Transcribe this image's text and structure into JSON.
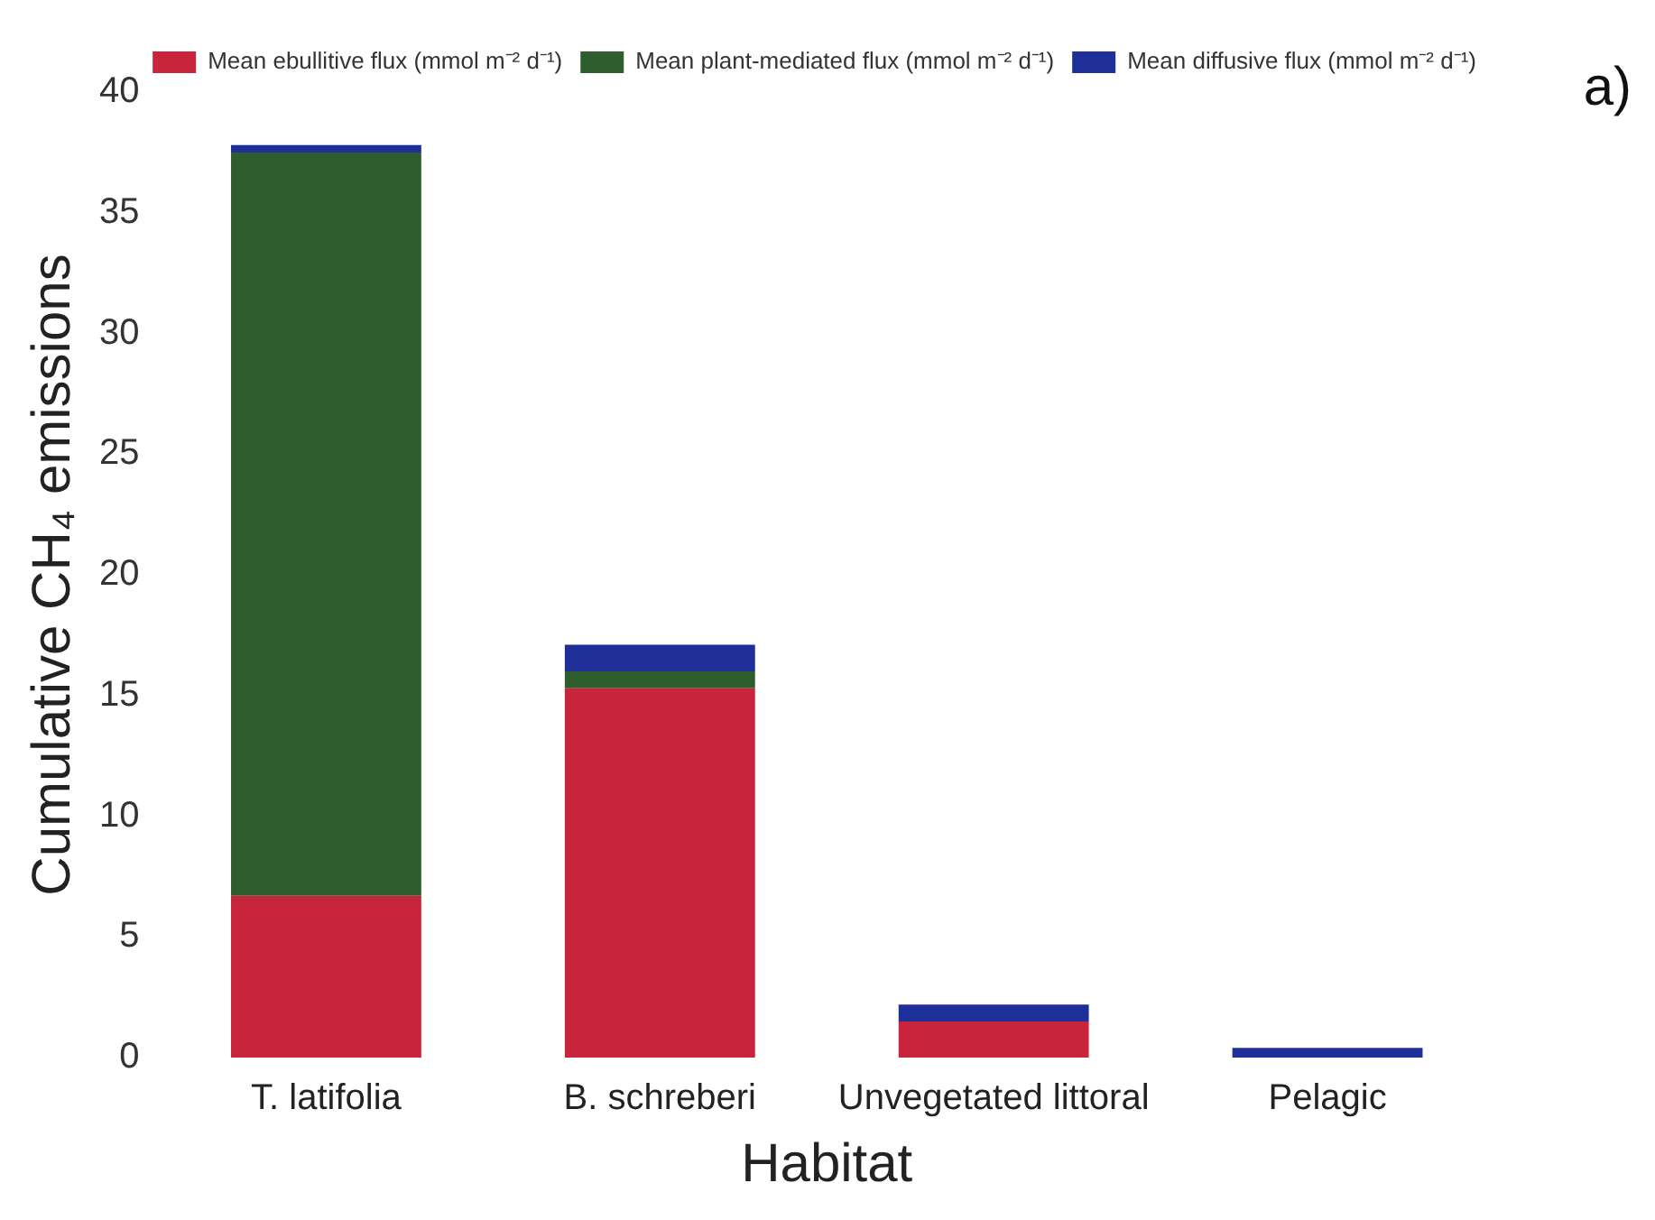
{
  "chart_data": {
    "type": "bar",
    "stacked": true,
    "xlabel": "Habitat",
    "ylabel": "Cumulative CH₄ emissions",
    "categories": [
      "T. latifolia",
      "B. schreberi",
      "Unvegetated littoral",
      "Pelagic"
    ],
    "series": [
      {
        "name": "Mean ebullitive flux (mmol m⁻² d⁻¹)",
        "color": "#c8243c",
        "values": [
          6.7,
          15.3,
          1.5,
          0
        ]
      },
      {
        "name": "Mean plant-mediated flux (mmol m⁻² d⁻¹)",
        "color": "#2e5e2e",
        "values": [
          30.8,
          0.7,
          0,
          0
        ]
      },
      {
        "name": "Mean diffusive flux (mmol m⁻² d⁻¹)",
        "color": "#1f2f9a",
        "values": [
          0.3,
          1.1,
          0.7,
          0.4
        ]
      }
    ],
    "ylim": [
      0,
      40
    ],
    "yticks": [
      0,
      5,
      10,
      15,
      20,
      25,
      30,
      35,
      40
    ],
    "grid": false,
    "legend": "top right",
    "annotations": [
      "a)"
    ]
  }
}
